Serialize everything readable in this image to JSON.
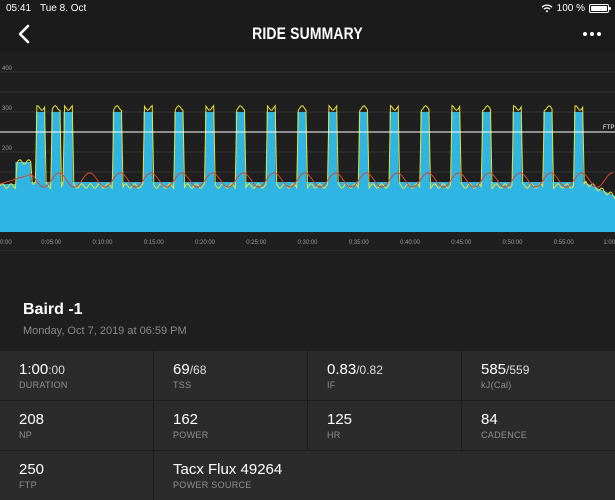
{
  "status": {
    "time": "05:41",
    "date": "Tue 8. Oct",
    "battery": "100 %"
  },
  "header": {
    "title": "RIDE SUMMARY"
  },
  "ride": {
    "name": "Baird -1",
    "date": "Monday, Oct 7, 2019 at 06:59 PM"
  },
  "metrics": {
    "duration": {
      "value": "1:00",
      "sub": ":00",
      "label": "DURATION"
    },
    "tss": {
      "value": "69",
      "sub": "/68",
      "label": "TSS"
    },
    "if": {
      "value": "0.83",
      "sub": "/0.82",
      "label": "IF"
    },
    "kj": {
      "value": "585",
      "sub": "/559",
      "label": "kJ(Cal)"
    },
    "np": {
      "value": "208",
      "label": "NP"
    },
    "power": {
      "value": "162",
      "label": "POWER"
    },
    "hr": {
      "value": "125",
      "label": "HR"
    },
    "cadence": {
      "value": "84",
      "label": "CADENCE"
    },
    "ftp": {
      "value": "250",
      "label": "FTP"
    },
    "source": {
      "value": "Tacx Flux 49264",
      "label": "POWER SOURCE"
    }
  },
  "chart_data": {
    "type": "area",
    "ylabels": [
      "400",
      "300",
      "200"
    ],
    "xlabels": [
      "0:00",
      "0:05:00",
      "0:10:00",
      "0:15:00",
      "0:20:00",
      "0:25:00",
      "0:30:00",
      "0:35:00",
      "0:40:00",
      "0:45:00",
      "0:50:00",
      "0:55:00",
      "1:00"
    ],
    "ftp_label": "FTP",
    "ftp": 250,
    "ylim": [
      0,
      450
    ],
    "xlim": [
      0,
      60
    ],
    "workout": {
      "warmup": [
        [
          0,
          120
        ],
        [
          1.5,
          120
        ],
        [
          1.5,
          175
        ],
        [
          3,
          175
        ],
        [
          3,
          125
        ]
      ],
      "base": 125,
      "intervals_start": [
        3.5,
        5,
        6.2,
        11,
        14,
        17,
        20,
        23,
        26,
        29,
        32,
        35,
        38,
        41,
        44,
        47,
        50,
        53,
        56
      ],
      "interval_len": 0.9,
      "interval_power": 300,
      "ramp_end": [
        [
          57,
          125
        ],
        [
          60,
          90
        ]
      ]
    },
    "colors": {
      "area": "#2fb5e3",
      "power": "#e8e233",
      "hr": "#d8452e",
      "ftp": "#ffffff"
    }
  }
}
